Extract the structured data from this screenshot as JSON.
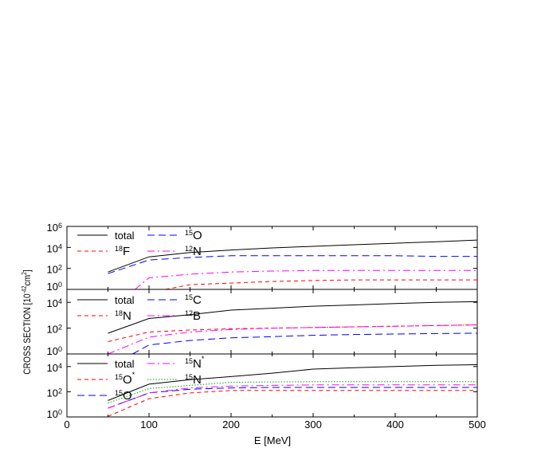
{
  "chart_data": {
    "type": "line",
    "xlabel": "E [MeV]",
    "ylabel": {
      "main": "CROSS SECTION [10",
      "exp1": "-42",
      "unit": "cm",
      "exp2": "2",
      "close": "]"
    },
    "xlim": [
      0,
      500
    ],
    "x_ticks": [
      "0",
      "100",
      "200",
      "300",
      "400",
      "500"
    ],
    "grid": false,
    "y_scale": "log",
    "panels": [
      {
        "ylim": [
          1,
          1000000
        ],
        "y_ticks": [
          {
            "base": "10",
            "exp": "0"
          },
          {
            "base": "10",
            "exp": "2"
          },
          {
            "base": "10",
            "exp": "4"
          },
          {
            "base": "10",
            "exp": "6"
          }
        ],
        "legend": "top-left",
        "series": [
          {
            "name": "total",
            "mass": "",
            "symbol": "",
            "star": "",
            "color": "#000000",
            "style": "solid",
            "x": [
              50,
              100,
              150,
              200,
              250,
              300,
              350,
              400,
              450,
              500
            ],
            "y": [
              45,
              1260,
              3200,
              5600,
              8900,
              12600,
              17800,
              25000,
              35000,
              50000
            ]
          },
          {
            "name": "",
            "mass": "18",
            "symbol": "F",
            "star": "",
            "color": "#ff0000",
            "style": "dash",
            "x": [
              120,
              150,
              200,
              250,
              300,
              350,
              400,
              450,
              500
            ],
            "y": [
              1,
              2.8,
              4,
              5.6,
              7,
              8,
              8,
              8,
              8
            ]
          },
          {
            "name": "",
            "mass": "15",
            "symbol": "O",
            "star": "",
            "color": "#0000ff",
            "style": "longdash",
            "x": [
              50,
              100,
              150,
              200,
              250,
              300,
              350,
              400,
              450,
              500
            ],
            "y": [
              32,
              630,
              1100,
              1600,
              1600,
              1600,
              1600,
              1600,
              1400,
              1400
            ]
          },
          {
            "name": "",
            "mass": "12",
            "symbol": "N",
            "star": "",
            "color": "#ff00ff",
            "style": "dashdot",
            "x": [
              83,
              100,
              150,
              200,
              250,
              300,
              350,
              400,
              450,
              500
            ],
            "y": [
              1,
              12.6,
              28,
              45,
              56,
              63,
              63,
              63,
              63,
              63
            ]
          }
        ]
      },
      {
        "ylim": [
          1,
          100000
        ],
        "y_ticks": [
          {
            "base": "10",
            "exp": "0"
          },
          {
            "base": "10",
            "exp": "2"
          },
          {
            "base": "10",
            "exp": "4"
          }
        ],
        "legend": "top-left",
        "series": [
          {
            "name": "total",
            "mass": "",
            "symbol": "",
            "star": "",
            "color": "#000000",
            "style": "solid",
            "x": [
              50,
              100,
              150,
              200,
              250,
              300,
              350,
              400,
              450,
              500
            ],
            "y": [
              40,
              560,
              1100,
              2500,
              3500,
              5000,
              6300,
              8000,
              10000,
              11200
            ]
          },
          {
            "name": "",
            "mass": "18",
            "symbol": "N",
            "star": "",
            "color": "#ff0000",
            "style": "dash",
            "x": [
              50,
              100,
              150,
              200,
              250,
              300,
              350,
              400,
              450,
              500
            ],
            "y": [
              9,
              50,
              71,
              89,
              100,
              112,
              126,
              141,
              158,
              178
            ]
          },
          {
            "name": "",
            "mass": "15",
            "symbol": "C",
            "star": "",
            "color": "#0000ff",
            "style": "longdash",
            "x": [
              80,
              100,
              150,
              200,
              250,
              300,
              350,
              400,
              450,
              500
            ],
            "y": [
              1,
              5,
              11,
              18,
              22,
              28,
              32,
              35,
              38,
              40
            ]
          },
          {
            "name": "",
            "mass": "12",
            "symbol": "B",
            "star": "",
            "color": "#ff00ff",
            "style": "dashdot",
            "x": [
              50,
              100,
              150,
              200,
              250,
              300,
              350,
              400,
              450,
              500
            ],
            "y": [
              1,
              20,
              50,
              79,
              100,
              112,
              126,
              141,
              158,
              178
            ]
          }
        ]
      },
      {
        "ylim": [
          1,
          100000
        ],
        "y_ticks": [
          {
            "base": "10",
            "exp": "0"
          },
          {
            "base": "10",
            "exp": "2"
          },
          {
            "base": "10",
            "exp": "4"
          }
        ],
        "legend": "top-left",
        "series": [
          {
            "name": "total",
            "mass": "",
            "symbol": "",
            "star": "",
            "color": "#000000",
            "style": "solid",
            "x": [
              50,
              100,
              150,
              200,
              250,
              300,
              350,
              400,
              450,
              500
            ],
            "y": [
              20,
              400,
              900,
              1600,
              3000,
              6300,
              8000,
              10000,
              12600,
              14000
            ]
          },
          {
            "name": "",
            "mass": "15",
            "symbol": "O",
            "star": "*",
            "color": "#ff0000",
            "style": "dash",
            "x": [
              50,
              100,
              150,
              200,
              250,
              300,
              350,
              400,
              450,
              500
            ],
            "y": [
              1.1,
              28,
              80,
              126,
              126,
              126,
              126,
              126,
              126,
              126
            ]
          },
          {
            "name": "",
            "mass": "15",
            "symbol": "O",
            "star": "",
            "color": "#0000ff",
            "style": "longdash",
            "x": [
              50,
              100,
              150,
              200,
              250,
              300,
              350,
              400,
              450,
              500
            ],
            "y": [
              5,
              80,
              160,
              200,
              220,
              220,
              220,
              220,
              220,
              220
            ]
          },
          {
            "name": "",
            "mass": "15",
            "symbol": "N",
            "star": "*",
            "color": "#ff00ff",
            "style": "dashdot",
            "x": [
              50,
              100,
              150,
              200,
              250,
              300,
              350,
              400,
              450,
              500
            ],
            "y": [
              5,
              80,
              200,
              280,
              320,
              350,
              350,
              350,
              350,
              350
            ]
          },
          {
            "name": "",
            "mass": "15",
            "symbol": "N",
            "star": "",
            "color": "#00aa00",
            "style": "dot",
            "x": [
              50,
              100,
              150,
              200,
              250,
              300,
              350,
              400,
              450,
              500
            ],
            "y": [
              12.6,
              180,
              320,
              560,
              600,
              630,
              630,
              630,
              630,
              630
            ]
          }
        ]
      }
    ]
  }
}
